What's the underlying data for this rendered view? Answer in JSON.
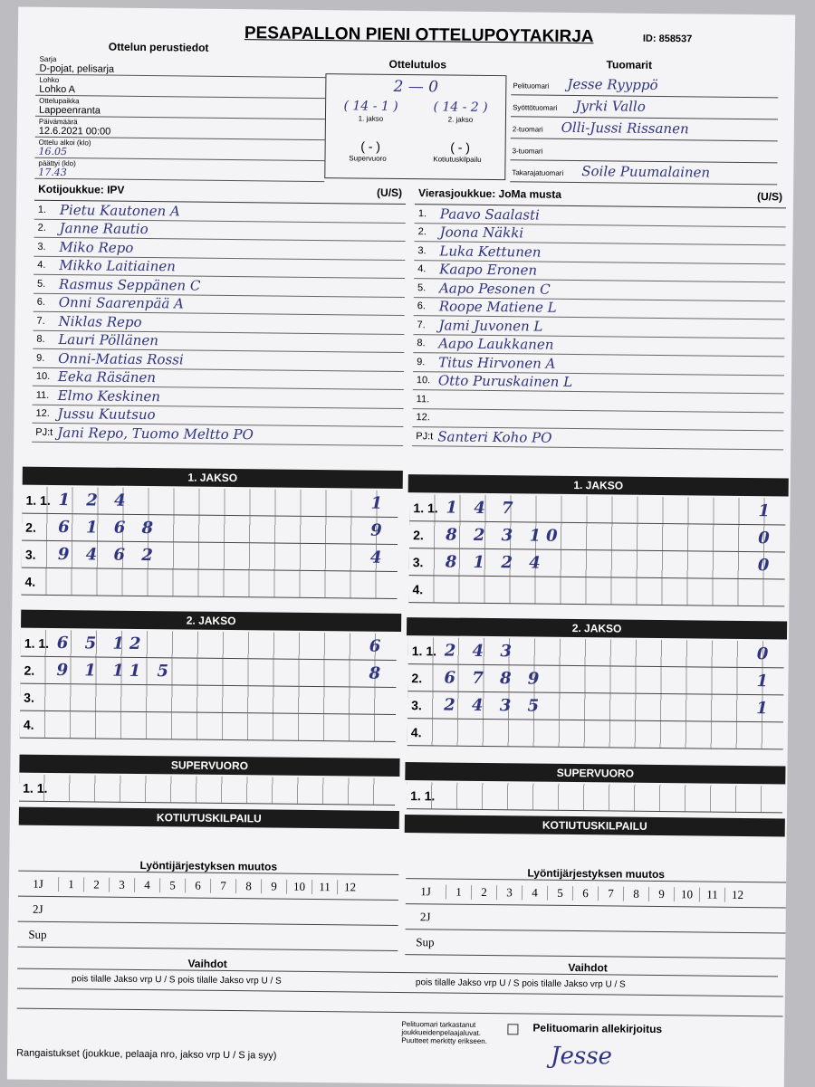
{
  "title": "PESAPALLON PIENI OTTELUPOYTAKIRJA",
  "id": "ID: 858537",
  "headers": {
    "basic": "Ottelun perustiedot",
    "result": "Ottelutulos",
    "referees": "Tuomarit"
  },
  "info": [
    {
      "label": "Sarja",
      "value": "D-pojat, pelisarja"
    },
    {
      "label": "Lohko",
      "value": "Lohko A"
    },
    {
      "label": "Ottelupaikka",
      "value": "Lappeenranta"
    },
    {
      "label": "Päivämäärä",
      "value": "12.6.2021 00:00"
    },
    {
      "label": "Ottelu alkoi (klo)",
      "value": "16.05"
    },
    {
      "label": "päättyi (klo)",
      "value": "17.43"
    }
  ],
  "result": {
    "total": "2 — 0",
    "p1": "( 14 - 1 )",
    "p2": "( 14 - 2 )",
    "p1_label": "1. jakso",
    "p2_label": "2. jakso",
    "sv": "( - )",
    "kk": "( - )",
    "sv_label": "Supervuoro",
    "kk_label": "Kotiutuskilpailu"
  },
  "referees": [
    {
      "label": "Pelituomari",
      "value": "Jesse Ryyppö"
    },
    {
      "label": "Syöttötuomari",
      "value": "Jyrki Vallo"
    },
    {
      "label": "2-tuomari",
      "value": "Olli-Jussi Rissanen"
    },
    {
      "label": "3-tuomari",
      "value": ""
    },
    {
      "label": "Takarajatuomari",
      "value": "Soile Puumalainen"
    }
  ],
  "home": {
    "title": "Kotijoukkue: IPV",
    "us": "(U/S)",
    "players": [
      "Pietu Kautonen A",
      "Janne Rautio",
      "Miko Repo",
      "Mikko Laitiainen",
      "Rasmus Seppänen C",
      "Onni Saarenpää A",
      "Niklas Repo",
      "Lauri Pöllänen",
      "Onni-Matias Rossi",
      "Eeka Räsänen",
      "Elmo Keskinen",
      "Jussu Kuutsuo"
    ],
    "pj_label": "PJ:t",
    "pj": "Jani Repo, Tuomo Meltto PO"
  },
  "away": {
    "title": "Vierasjoukkue: JoMa musta",
    "us": "(U/S)",
    "players": [
      "Paavo Saalasti",
      "Joona Näkki",
      "Luka Kettunen",
      "Kaapo Eronen",
      "Aapo Pesonen C",
      "Roope Matiene L",
      "Jami Juvonen L",
      "Aapo Laukkanen",
      "Titus Hirvonen A",
      "Otto Puruskainen L",
      "",
      ""
    ],
    "pj_label": "PJ:t",
    "pj": "Santeri Koho PO"
  },
  "sections": {
    "p1": "1. JAKSO",
    "p2": "2. JAKSO",
    "sv": "SUPERVUORO",
    "kk": "KOTIUTUSKILPAILU",
    "order": "Lyöntijärjestyksen muutos",
    "subs": "Vaihdot"
  },
  "home_p1": [
    {
      "n": "1. 1.",
      "s": "1 2 4",
      "t": "1"
    },
    {
      "n": "2.",
      "s": "6 1 6 8",
      "t": "9"
    },
    {
      "n": "3.",
      "s": "9 4 6 2",
      "t": "4"
    },
    {
      "n": "4.",
      "s": "",
      "t": ""
    }
  ],
  "away_p1": [
    {
      "n": "1. 1.",
      "s": "1 4 7",
      "t": "1"
    },
    {
      "n": "2.",
      "s": "8 2 3 10",
      "t": "0"
    },
    {
      "n": "3.",
      "s": "8 1 2 4",
      "t": "0"
    },
    {
      "n": "4.",
      "s": "",
      "t": ""
    }
  ],
  "home_p2": [
    {
      "n": "1. 1.",
      "s": "6 5 12",
      "t": "6"
    },
    {
      "n": "2.",
      "s": "9 1 11 5",
      "t": "8"
    },
    {
      "n": "3.",
      "s": "",
      "t": ""
    },
    {
      "n": "4.",
      "s": "",
      "t": ""
    }
  ],
  "away_p2": [
    {
      "n": "1. 1.",
      "s": "2 4 3",
      "t": "0"
    },
    {
      "n": "2.",
      "s": "6 7 8 9",
      "t": "1"
    },
    {
      "n": "3.",
      "s": "2 4 3 5",
      "t": "1"
    },
    {
      "n": "4.",
      "s": "",
      "t": ""
    }
  ],
  "sv_row": "1. 1.",
  "order_rows": [
    "1J",
    "2J",
    "Sup"
  ],
  "order_nums": [
    "1",
    "2",
    "3",
    "4",
    "5",
    "6",
    "7",
    "8",
    "9",
    "10",
    "11",
    "12"
  ],
  "subs_cols": "pois   tilalle   Jakso vrp U / S   pois   tilalle   Jakso vrp U / S",
  "penalties": "Rangaistukset (joukkue, pelaaja nro, jakso vrp U / S ja syy)",
  "check": "Pelituomari tarkastanut joukkueidenpelaajaluvat. Puutteet merkitty erikseen.",
  "signature_label": "Pelituomarin allekirjoitus",
  "signature": "Jesse"
}
